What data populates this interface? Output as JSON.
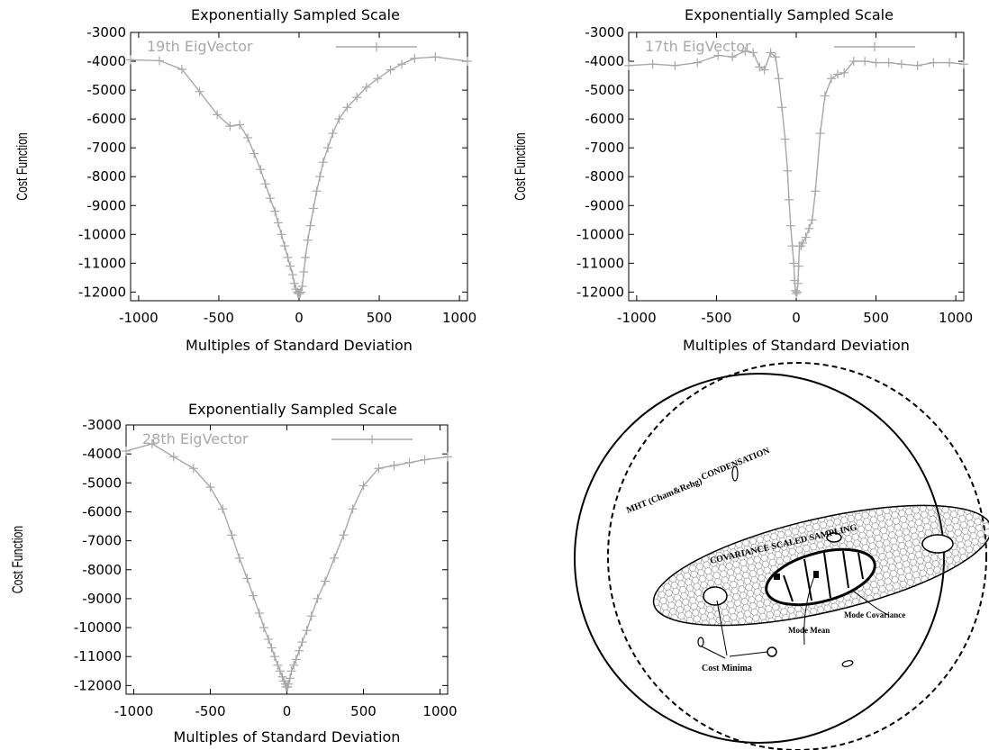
{
  "chart_data": [
    {
      "type": "line",
      "title": "Exponentially Sampled Scale",
      "xlabel": "Multiples of Standard Deviation",
      "ylabel": "Cost Function",
      "xlim": [
        -1050,
        1050
      ],
      "ylim": [
        -12300,
        -3000
      ],
      "xticks": [
        "-1000",
        "-500",
        "0",
        "500",
        "1000"
      ],
      "yticks": [
        "-3000",
        "-4000",
        "-5000",
        "-6000",
        "-7000",
        "-8000",
        "-9000",
        "-10000",
        "-11000",
        "-12000"
      ],
      "legend_position": "top-left",
      "series": [
        {
          "name": "19th EigVector",
          "color": "#a8a8a8",
          "x": [
            -1050,
            -870,
            -730,
            -620,
            -510,
            -430,
            -370,
            -320,
            -280,
            -240,
            -210,
            -180,
            -150,
            -130,
            -110,
            -90,
            -70,
            -55,
            -40,
            -30,
            -20,
            -10,
            -5,
            0,
            5,
            10,
            20,
            30,
            40,
            55,
            70,
            90,
            110,
            130,
            150,
            180,
            210,
            250,
            300,
            360,
            420,
            490,
            570,
            640,
            720,
            850,
            1050
          ],
          "y": [
            -3950,
            -3980,
            -4280,
            -5050,
            -5850,
            -6250,
            -6200,
            -6650,
            -7200,
            -7750,
            -8250,
            -8750,
            -9200,
            -9600,
            -10000,
            -10400,
            -10800,
            -11100,
            -11400,
            -11700,
            -11900,
            -12000,
            -12050,
            -12050,
            -12050,
            -12000,
            -11800,
            -11300,
            -10800,
            -10200,
            -9700,
            -9100,
            -8500,
            -8000,
            -7500,
            -7000,
            -6500,
            -6000,
            -5600,
            -5250,
            -4900,
            -4600,
            -4300,
            -4100,
            -3900,
            -3850,
            -4000
          ]
        }
      ]
    },
    {
      "type": "line",
      "title": "Exponentially Sampled Scale",
      "xlabel": "Multiples of Standard Deviation",
      "ylabel": "Cost Function",
      "xlim": [
        -1050,
        1050
      ],
      "ylim": [
        -12300,
        -3000
      ],
      "xticks": [
        "-1000",
        "-500",
        "0",
        "500",
        "1000"
      ],
      "yticks": [
        "-3000",
        "-4000",
        "-5000",
        "-6000",
        "-7000",
        "-8000",
        "-9000",
        "-10000",
        "-11000",
        "-12000"
      ],
      "legend_position": "top-left",
      "series": [
        {
          "name": "17th EigVector",
          "color": "#a8a8a8",
          "x": [
            -1050,
            -900,
            -760,
            -620,
            -490,
            -400,
            -320,
            -270,
            -230,
            -200,
            -160,
            -130,
            -110,
            -90,
            -70,
            -55,
            -45,
            -35,
            -25,
            -15,
            -10,
            -5,
            0,
            5,
            10,
            15,
            20,
            30,
            40,
            60,
            80,
            100,
            120,
            150,
            180,
            220,
            260,
            300,
            360,
            430,
            500,
            580,
            660,
            760,
            860,
            960,
            1050
          ],
          "y": [
            -4150,
            -4100,
            -4150,
            -4050,
            -3800,
            -3850,
            -3650,
            -3700,
            -4200,
            -4300,
            -3700,
            -3850,
            -4600,
            -5600,
            -6700,
            -7800,
            -8800,
            -9700,
            -10400,
            -11000,
            -11600,
            -11950,
            -12050,
            -12000,
            -11700,
            -11100,
            -10400,
            -10400,
            -10300,
            -10100,
            -9800,
            -9500,
            -8500,
            -6500,
            -5200,
            -4600,
            -4450,
            -4400,
            -4000,
            -4000,
            -4050,
            -4050,
            -4100,
            -4150,
            -4050,
            -4050,
            -4100
          ]
        }
      ]
    },
    {
      "type": "line",
      "title": "Exponentially Sampled Scale",
      "xlabel": "Multiples of Standard Deviation",
      "ylabel": "Cost Function",
      "xlim": [
        -1050,
        1050
      ],
      "ylim": [
        -12300,
        -3000
      ],
      "xticks": [
        "-1000",
        "-500",
        "0",
        "500",
        "1000"
      ],
      "yticks": [
        "-3000",
        "-4000",
        "-5000",
        "-6000",
        "-7000",
        "-8000",
        "-9000",
        "-10000",
        "-11000",
        "-12000"
      ],
      "legend_position": "top-left",
      "series": [
        {
          "name": "28th EigVector",
          "color": "#a8a8a8",
          "x": [
            -1050,
            -880,
            -740,
            -610,
            -500,
            -420,
            -360,
            -310,
            -260,
            -220,
            -180,
            -150,
            -120,
            -100,
            -80,
            -60,
            -45,
            -30,
            -20,
            -10,
            -5,
            0,
            5,
            10,
            20,
            30,
            45,
            60,
            80,
            100,
            130,
            160,
            200,
            250,
            310,
            370,
            430,
            500,
            600,
            700,
            800,
            900,
            1050
          ],
          "y": [
            -3900,
            -3650,
            -4100,
            -4500,
            -5150,
            -5900,
            -6800,
            -7600,
            -8300,
            -8900,
            -9500,
            -10000,
            -10400,
            -10700,
            -11000,
            -11300,
            -11500,
            -11700,
            -11850,
            -11950,
            -12050,
            -12050,
            -12050,
            -11950,
            -11750,
            -11500,
            -11300,
            -11100,
            -10800,
            -10500,
            -10100,
            -9600,
            -9000,
            -8400,
            -7600,
            -6800,
            -5900,
            -5100,
            -4500,
            -4400,
            -4300,
            -4200,
            -4100
          ]
        }
      ]
    }
  ],
  "diagram": {
    "labels": {
      "condensation": "CONDENSATION",
      "mht": "MHT (Cham&Rehg)",
      "covariance_scaled_sampling": "COVARIANCE SCALED SAMPLING",
      "mode_covariance": "Mode Covariance",
      "mode_mean": "Mode Mean",
      "cost_minima": "Cost Minima"
    }
  }
}
